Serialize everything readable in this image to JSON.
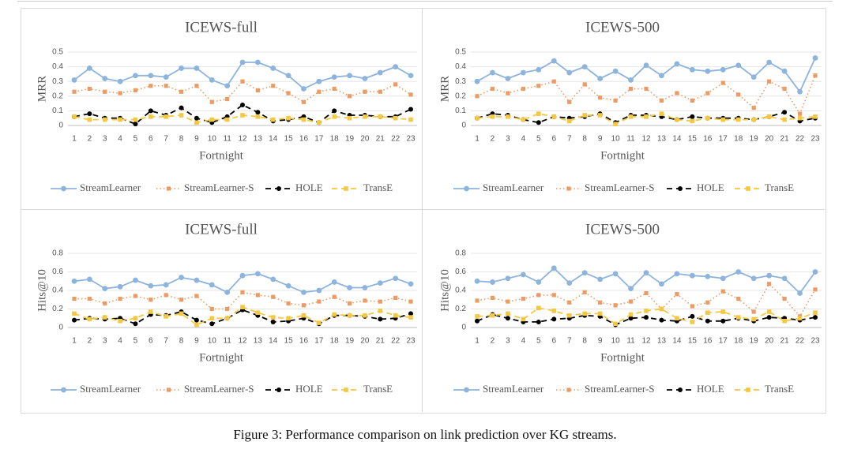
{
  "caption": "Figure 3: Performance comparison on link prediction over KG streams.",
  "colors": {
    "StreamLearner": "#8db4dc",
    "StreamLearner-S": "#eb9b63",
    "HOLE": "#000000",
    "TransE": "#f4c842"
  },
  "chart_data": [
    {
      "type": "line",
      "title": "ICEWS-full",
      "xlabel": "Fortnight",
      "ylabel": "MRR",
      "ylim": [
        0,
        0.5
      ],
      "yticks": [
        "0",
        "0.1",
        "0.2",
        "0.3",
        "0.4",
        "0.5"
      ],
      "categories": [
        "1",
        "2",
        "3",
        "4",
        "5",
        "6",
        "7",
        "8",
        "9",
        "10",
        "11",
        "12",
        "13",
        "14",
        "15",
        "16",
        "17",
        "18",
        "19",
        "20",
        "21",
        "22",
        "23"
      ],
      "legend": [
        "StreamLearner",
        "StreamLearner-S",
        "HOLE",
        "TransE"
      ],
      "series": [
        {
          "name": "StreamLearner",
          "values": [
            0.31,
            0.39,
            0.32,
            0.3,
            0.34,
            0.34,
            0.33,
            0.39,
            0.39,
            0.31,
            0.27,
            0.43,
            0.43,
            0.39,
            0.34,
            0.25,
            0.3,
            0.33,
            0.34,
            0.32,
            0.36,
            0.4,
            0.34
          ]
        },
        {
          "name": "StreamLearner-S",
          "values": [
            0.23,
            0.25,
            0.23,
            0.22,
            0.24,
            0.27,
            0.27,
            0.23,
            0.27,
            0.16,
            0.18,
            0.3,
            0.24,
            0.27,
            0.22,
            0.16,
            0.23,
            0.25,
            0.2,
            0.23,
            0.23,
            0.28,
            0.21
          ]
        },
        {
          "name": "HOLE",
          "values": [
            0.06,
            0.08,
            0.05,
            0.05,
            0.01,
            0.1,
            0.07,
            0.12,
            0.05,
            0.02,
            0.06,
            0.14,
            0.09,
            0.03,
            0.04,
            0.06,
            0.02,
            0.1,
            0.07,
            0.07,
            0.06,
            0.06,
            0.11
          ]
        },
        {
          "name": "TransE",
          "values": [
            0.06,
            0.04,
            0.04,
            0.04,
            0.04,
            0.06,
            0.06,
            0.07,
            0.02,
            0.04,
            0.04,
            0.07,
            0.06,
            0.04,
            0.05,
            0.04,
            0.02,
            0.06,
            0.05,
            0.06,
            0.06,
            0.05,
            0.04
          ]
        }
      ]
    },
    {
      "type": "line",
      "title": "ICEWS-500",
      "xlabel": "Fortnight",
      "ylabel": "MRR",
      "ylim": [
        0,
        0.5
      ],
      "yticks": [
        "0",
        "0.1",
        "0.2",
        "0.3",
        "0.4",
        "0.5"
      ],
      "categories": [
        "1",
        "2",
        "3",
        "4",
        "5",
        "6",
        "7",
        "8",
        "9",
        "10",
        "11",
        "12",
        "13",
        "14",
        "15",
        "16",
        "17",
        "18",
        "19",
        "20",
        "21",
        "22",
        "23"
      ],
      "legend": [
        "StreamLearner",
        "StreamLearner-S",
        "HOLE",
        "TransE"
      ],
      "series": [
        {
          "name": "StreamLearner",
          "values": [
            0.3,
            0.36,
            0.32,
            0.36,
            0.38,
            0.44,
            0.36,
            0.4,
            0.32,
            0.37,
            0.31,
            0.41,
            0.34,
            0.42,
            0.38,
            0.37,
            0.38,
            0.41,
            0.33,
            0.43,
            0.37,
            0.23,
            0.46
          ]
        },
        {
          "name": "StreamLearner-S",
          "values": [
            0.2,
            0.25,
            0.22,
            0.25,
            0.27,
            0.3,
            0.16,
            0.28,
            0.19,
            0.17,
            0.25,
            0.25,
            0.17,
            0.22,
            0.17,
            0.22,
            0.29,
            0.21,
            0.12,
            0.3,
            0.25,
            0.08,
            0.34
          ]
        },
        {
          "name": "HOLE",
          "values": [
            0.05,
            0.08,
            0.07,
            0.04,
            0.02,
            0.06,
            0.05,
            0.06,
            0.08,
            0.02,
            0.07,
            0.07,
            0.06,
            0.04,
            0.06,
            0.05,
            0.05,
            0.05,
            0.04,
            0.06,
            0.09,
            0.03,
            0.05
          ]
        },
        {
          "name": "TransE",
          "values": [
            0.05,
            0.06,
            0.06,
            0.04,
            0.08,
            0.06,
            0.03,
            0.07,
            0.07,
            0.01,
            0.06,
            0.06,
            0.08,
            0.04,
            0.03,
            0.05,
            0.04,
            0.04,
            0.04,
            0.06,
            0.04,
            0.05,
            0.06
          ]
        }
      ]
    },
    {
      "type": "line",
      "title": "ICEWS-full",
      "xlabel": "Fortnight",
      "ylabel": "Hits@10",
      "ylim": [
        0,
        0.8
      ],
      "yticks": [
        "0",
        "0.2",
        "0.4",
        "0.6",
        "0.8"
      ],
      "categories": [
        "1",
        "2",
        "3",
        "4",
        "5",
        "6",
        "7",
        "8",
        "9",
        "10",
        "11",
        "12",
        "13",
        "14",
        "15",
        "16",
        "17",
        "18",
        "19",
        "20",
        "21",
        "22",
        "23"
      ],
      "legend": [
        "StreamLearner",
        "StreamLearner-S",
        "HOLE",
        "TransE"
      ],
      "series": [
        {
          "name": "StreamLearner",
          "values": [
            0.5,
            0.52,
            0.42,
            0.44,
            0.51,
            0.45,
            0.46,
            0.54,
            0.51,
            0.46,
            0.38,
            0.56,
            0.58,
            0.52,
            0.45,
            0.38,
            0.4,
            0.49,
            0.43,
            0.43,
            0.48,
            0.53,
            0.47
          ]
        },
        {
          "name": "StreamLearner-S",
          "values": [
            0.31,
            0.31,
            0.26,
            0.31,
            0.34,
            0.3,
            0.35,
            0.3,
            0.34,
            0.2,
            0.2,
            0.38,
            0.35,
            0.33,
            0.26,
            0.24,
            0.28,
            0.33,
            0.26,
            0.29,
            0.28,
            0.32,
            0.28
          ]
        },
        {
          "name": "HOLE",
          "values": [
            0.08,
            0.1,
            0.09,
            0.1,
            0.04,
            0.14,
            0.13,
            0.17,
            0.08,
            0.04,
            0.1,
            0.19,
            0.13,
            0.06,
            0.07,
            0.1,
            0.04,
            0.13,
            0.13,
            0.12,
            0.09,
            0.1,
            0.15
          ]
        },
        {
          "name": "TransE",
          "values": [
            0.15,
            0.09,
            0.11,
            0.07,
            0.1,
            0.17,
            0.12,
            0.15,
            0.03,
            0.1,
            0.1,
            0.22,
            0.16,
            0.11,
            0.1,
            0.13,
            0.05,
            0.14,
            0.13,
            0.13,
            0.18,
            0.13,
            0.11
          ]
        }
      ]
    },
    {
      "type": "line",
      "title": "ICEWS-500",
      "xlabel": "Fortnight",
      "ylabel": "Hits@10",
      "ylim": [
        0,
        0.8
      ],
      "yticks": [
        "0",
        "0.2",
        "0.4",
        "0.6",
        "0.8"
      ],
      "categories": [
        "1",
        "2",
        "3",
        "4",
        "5",
        "6",
        "7",
        "8",
        "9",
        "10",
        "11",
        "12",
        "13",
        "14",
        "15",
        "16",
        "17",
        "18",
        "19",
        "20",
        "21",
        "22",
        "23"
      ],
      "legend": [
        "StreamLearner",
        "StreamLearner-S",
        "HOLE",
        "TransE"
      ],
      "series": [
        {
          "name": "StreamLearner",
          "values": [
            0.5,
            0.49,
            0.53,
            0.57,
            0.49,
            0.64,
            0.48,
            0.59,
            0.52,
            0.58,
            0.42,
            0.59,
            0.47,
            0.58,
            0.56,
            0.55,
            0.53,
            0.6,
            0.53,
            0.56,
            0.53,
            0.37,
            0.6
          ]
        },
        {
          "name": "StreamLearner-S",
          "values": [
            0.29,
            0.32,
            0.28,
            0.31,
            0.35,
            0.35,
            0.27,
            0.38,
            0.27,
            0.24,
            0.28,
            0.37,
            0.2,
            0.36,
            0.23,
            0.27,
            0.39,
            0.31,
            0.17,
            0.47,
            0.31,
            0.12,
            0.41
          ]
        },
        {
          "name": "HOLE",
          "values": [
            0.07,
            0.14,
            0.1,
            0.06,
            0.06,
            0.09,
            0.1,
            0.13,
            0.12,
            0.03,
            0.1,
            0.11,
            0.08,
            0.07,
            0.12,
            0.07,
            0.07,
            0.1,
            0.07,
            0.11,
            0.1,
            0.08,
            0.11
          ]
        },
        {
          "name": "TransE",
          "values": [
            0.12,
            0.13,
            0.15,
            0.09,
            0.21,
            0.18,
            0.13,
            0.15,
            0.15,
            0.04,
            0.14,
            0.18,
            0.2,
            0.1,
            0.06,
            0.16,
            0.17,
            0.11,
            0.09,
            0.17,
            0.07,
            0.1,
            0.16
          ]
        }
      ]
    }
  ]
}
